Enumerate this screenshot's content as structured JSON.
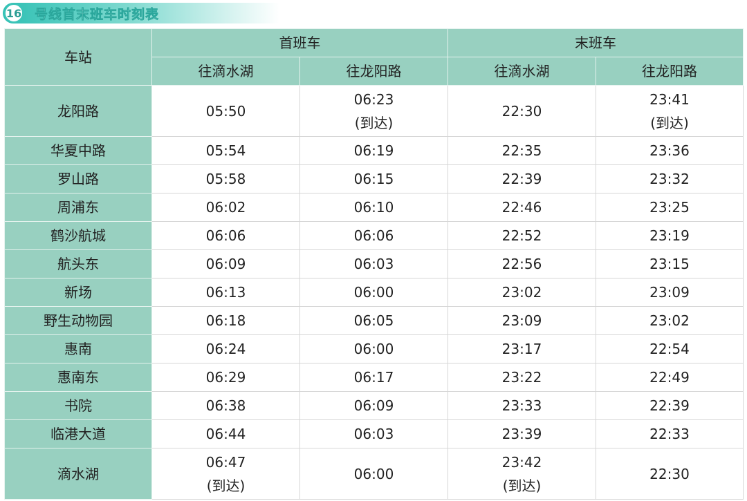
{
  "title": {
    "line_number": "16",
    "text": "号线首末班车时刻表"
  },
  "header": {
    "station": "车站",
    "first": "首班车",
    "last": "末班车",
    "dir_a": "往滴水湖",
    "dir_b": "往龙阳路"
  },
  "rows": [
    {
      "station": "龙阳路",
      "first_a": "05:50",
      "first_b": "06:23",
      "first_b_note": "(到达)",
      "last_a": "22:30",
      "last_b": "23:41",
      "last_b_note": "(到达)"
    },
    {
      "station": "华夏中路",
      "first_a": "05:54",
      "first_b": "06:19",
      "last_a": "22:35",
      "last_b": "23:36"
    },
    {
      "station": "罗山路",
      "first_a": "05:58",
      "first_b": "06:15",
      "last_a": "22:39",
      "last_b": "23:32"
    },
    {
      "station": "周浦东",
      "first_a": "06:02",
      "first_b": "06:10",
      "last_a": "22:46",
      "last_b": "23:25"
    },
    {
      "station": "鹤沙航城",
      "first_a": "06:06",
      "first_b": "06:06",
      "last_a": "22:52",
      "last_b": "23:19"
    },
    {
      "station": "航头东",
      "first_a": "06:09",
      "first_b": "06:03",
      "last_a": "22:56",
      "last_b": "23:15"
    },
    {
      "station": "新场",
      "first_a": "06:13",
      "first_b": "06:00",
      "last_a": "23:02",
      "last_b": "23:09"
    },
    {
      "station": "野生动物园",
      "first_a": "06:18",
      "first_b": "06:05",
      "last_a": "23:09",
      "last_b": "23:02"
    },
    {
      "station": "惠南",
      "first_a": "06:24",
      "first_b": "06:00",
      "last_a": "23:17",
      "last_b": "22:54"
    },
    {
      "station": "惠南东",
      "first_a": "06:29",
      "first_b": "06:17",
      "last_a": "23:22",
      "last_b": "22:49"
    },
    {
      "station": "书院",
      "first_a": "06:38",
      "first_b": "06:09",
      "last_a": "23:33",
      "last_b": "22:39"
    },
    {
      "station": "临港大道",
      "first_a": "06:44",
      "first_b": "06:03",
      "last_a": "23:39",
      "last_b": "22:33"
    },
    {
      "station": "滴水湖",
      "first_a": "06:47",
      "first_a_note": "(到达)",
      "first_b": "06:00",
      "last_a": "23:42",
      "last_a_note": "(到达)",
      "last_b": "22:30"
    }
  ],
  "colors": {
    "header_bg": "#98d0c0",
    "accent": "#2fc0b4"
  }
}
